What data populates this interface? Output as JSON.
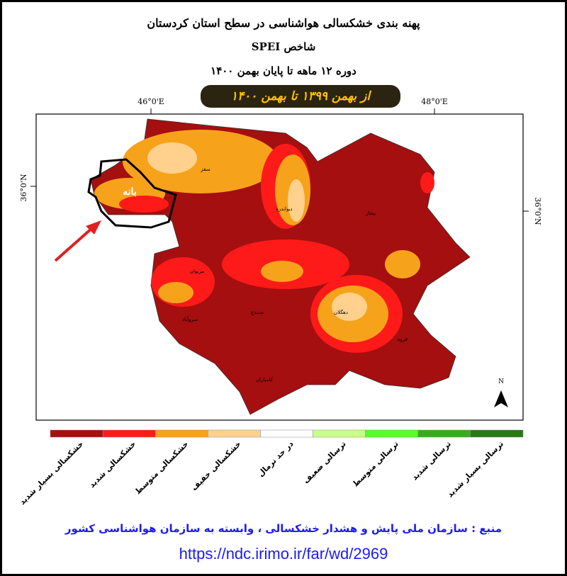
{
  "header": {
    "title": "پهنه بندی خشکسالی هواشناسی در سطح استان کردستان",
    "index": "شاخص SPEI",
    "period": "دوره ۱۲ ماهه تا پایان بهمن ۱۴۰۰",
    "range": "از بهمن ۱۳۹۹ تا بهمن ۱۴۰۰"
  },
  "graticule": {
    "top": [
      "46°0'E",
      "48°0'E"
    ],
    "left": [
      "36°0'N"
    ],
    "right": [
      "36°0'N"
    ]
  },
  "map_labels": [
    "سقز",
    "بانه",
    "دیواندره",
    "بیجار",
    "مریوان",
    "سروآباد",
    "سنندج",
    "دهگلان",
    "قروه",
    "کامیاران"
  ],
  "north": "N",
  "legend": [
    {
      "label": "خشکسالی بسیار شدید",
      "color": "#a50f0f"
    },
    {
      "label": "خشکسالی شدید",
      "color": "#ff1a1a"
    },
    {
      "label": "خشکسالی متوسط",
      "color": "#f7a21b"
    },
    {
      "label": "خشکسالی خفیف",
      "color": "#ffd18c"
    },
    {
      "label": "در حد نرمال",
      "color": "#ffffff"
    },
    {
      "label": "ترسالی ضعیف",
      "color": "#c8ff8c"
    },
    {
      "label": "ترسالی متوسط",
      "color": "#5aff28"
    },
    {
      "label": "ترسالی شدید",
      "color": "#3caa1e"
    },
    {
      "label": "ترسالی بسیار شدید",
      "color": "#267814"
    }
  ],
  "footer": {
    "source": "منبع : سازمان ملی پایش و هشدار خشکسالی ، وابسته به سازمان هواشناسی کشور",
    "url": "https://ndc.irimo.ir/far/wd/2969"
  }
}
